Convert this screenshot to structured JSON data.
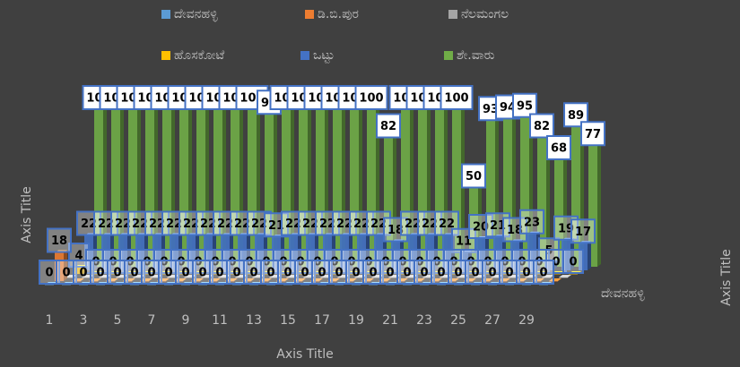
{
  "chart_data": {
    "type": "bar3d",
    "x_label": "Axis Title",
    "y_label": "Axis Title",
    "z_label": "Axis Title",
    "depth_category": "ದೇವನಹಳ್ಳಿ",
    "categories": [
      1,
      null,
      3,
      null,
      5,
      null,
      7,
      null,
      9,
      null,
      11,
      null,
      13,
      null,
      15,
      null,
      17,
      null,
      19,
      null,
      21,
      null,
      23,
      null,
      25,
      null,
      27,
      null,
      29,
      null
    ],
    "series": [
      {
        "name": "ದೇವನಹಳ್ಳಿ",
        "color": "#5b9bd5",
        "values": [
          0,
          0,
          0,
          0,
          0,
          0,
          0,
          0,
          0,
          0,
          0,
          0,
          0,
          0,
          0,
          0,
          0,
          0,
          0,
          0,
          0,
          0,
          0,
          0,
          0,
          0,
          0,
          0,
          0,
          0
        ]
      },
      {
        "name": "ಡಿ.ಬಿ.ಪುರ",
        "color": "#ed7d31",
        "values": [
          18,
          0,
          0,
          0,
          0,
          0,
          0,
          0,
          0,
          0,
          0,
          0,
          0,
          0,
          0,
          0,
          0,
          0,
          0,
          0,
          0,
          0,
          0,
          0,
          0,
          0,
          0,
          0,
          0,
          0
        ]
      },
      {
        "name": "ನೆಲಮಂಗಲ",
        "color": "#a5a5a5",
        "values": [
          0,
          0,
          0,
          0,
          0,
          0,
          0,
          0,
          0,
          0,
          0,
          0,
          0,
          0,
          0,
          0,
          0,
          0,
          0,
          0,
          0,
          0,
          0,
          0,
          0,
          0,
          0,
          0,
          0,
          0
        ]
      },
      {
        "name": "ಹೊಸಕೋಟೆ",
        "color": "#ffc000",
        "values": [
          4,
          0,
          0,
          0,
          0,
          0,
          0,
          0,
          0,
          0,
          0,
          0,
          0,
          0,
          0,
          0,
          0,
          0,
          0,
          0,
          0,
          0,
          0,
          0,
          0,
          0,
          0,
          0,
          0,
          0
        ]
      },
      {
        "name": "ಒಟ್ಟು",
        "color": "#4472c4",
        "values": [
          22,
          22,
          22,
          22,
          22,
          22,
          22,
          22,
          22,
          22,
          22,
          21,
          22,
          22,
          22,
          22,
          22,
          22,
          18,
          22,
          22,
          22,
          11,
          20,
          21,
          18,
          23,
          5,
          19,
          17
        ]
      },
      {
        "name": "ಶೇ.ವಾರು",
        "color": "#70ad47",
        "values": [
          100,
          100,
          100,
          100,
          100,
          100,
          100,
          100,
          100,
          100,
          97,
          100,
          100,
          100,
          100,
          100,
          100,
          82,
          100,
          100,
          100,
          100,
          50,
          93,
          94,
          95,
          82,
          68,
          89,
          77
        ]
      }
    ],
    "legend": "top"
  }
}
